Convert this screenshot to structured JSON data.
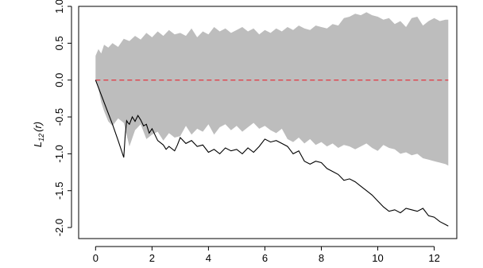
{
  "chart_data": {
    "type": "area",
    "title": "",
    "xlabel": "",
    "ylabel": {
      "base": "L",
      "subscript": "12",
      "arg": "(r)"
    },
    "xlim": [
      -0.6,
      12.8
    ],
    "ylim": [
      -2.15,
      1.0
    ],
    "x_ticks": [
      0,
      2,
      4,
      6,
      8,
      10,
      12
    ],
    "x_tick_labels": [
      "0",
      "2",
      "4",
      "6",
      "8",
      "10",
      "12"
    ],
    "y_ticks": [
      1.0,
      0.5,
      0.0,
      -0.5,
      -1.0,
      -1.5,
      -2.0
    ],
    "y_tick_labels": [
      "1.0",
      "0.5",
      "0.0",
      "-0.5",
      "-1.0",
      "-1.5",
      "-2.0"
    ],
    "grid": false,
    "series": [
      {
        "role": "envelope",
        "x": [
          0,
          0.1,
          0.2,
          0.3,
          0.45,
          0.6,
          0.8,
          1.0,
          1.2,
          1.4,
          1.6,
          1.8,
          2.0,
          2.2,
          2.4,
          2.6,
          2.8,
          3.0,
          3.2,
          3.4,
          3.6,
          3.8,
          4.0,
          4.2,
          4.4,
          4.6,
          4.8,
          5.0,
          5.2,
          5.4,
          5.6,
          5.8,
          6.0,
          6.2,
          6.4,
          6.6,
          6.8,
          7.0,
          7.2,
          7.4,
          7.6,
          7.8,
          8.0,
          8.2,
          8.4,
          8.6,
          8.8,
          9.0,
          9.2,
          9.4,
          9.6,
          9.8,
          10.0,
          10.2,
          10.4,
          10.6,
          10.8,
          11.0,
          11.2,
          11.4,
          11.6,
          11.8,
          12.0,
          12.2,
          12.4,
          12.5
        ],
        "upper": [
          0.33,
          0.42,
          0.36,
          0.48,
          0.44,
          0.5,
          0.45,
          0.56,
          0.53,
          0.6,
          0.55,
          0.64,
          0.58,
          0.66,
          0.6,
          0.68,
          0.62,
          0.64,
          0.6,
          0.7,
          0.58,
          0.66,
          0.62,
          0.72,
          0.66,
          0.7,
          0.64,
          0.68,
          0.72,
          0.66,
          0.7,
          0.62,
          0.68,
          0.64,
          0.7,
          0.66,
          0.72,
          0.68,
          0.74,
          0.7,
          0.68,
          0.74,
          0.72,
          0.7,
          0.76,
          0.74,
          0.84,
          0.86,
          0.9,
          0.88,
          0.92,
          0.88,
          0.86,
          0.82,
          0.84,
          0.76,
          0.8,
          0.72,
          0.84,
          0.86,
          0.74,
          0.8,
          0.84,
          0.8,
          0.82,
          0.82
        ],
        "lower": [
          0.0,
          -0.12,
          -0.3,
          -0.42,
          -0.56,
          -0.62,
          -0.52,
          -0.58,
          -0.9,
          -0.68,
          -0.6,
          -0.8,
          -0.74,
          -0.7,
          -0.82,
          -0.72,
          -0.78,
          -0.76,
          -0.62,
          -0.74,
          -0.66,
          -0.7,
          -0.6,
          -0.74,
          -0.64,
          -0.6,
          -0.68,
          -0.62,
          -0.7,
          -0.64,
          -0.58,
          -0.66,
          -0.62,
          -0.68,
          -0.72,
          -0.66,
          -0.8,
          -0.84,
          -0.78,
          -0.86,
          -0.8,
          -0.88,
          -0.84,
          -0.9,
          -0.86,
          -0.92,
          -0.88,
          -0.9,
          -0.94,
          -0.9,
          -0.86,
          -0.92,
          -0.96,
          -0.88,
          -0.92,
          -0.94,
          -1.0,
          -0.98,
          -1.02,
          -1.0,
          -1.06,
          -1.08,
          -1.1,
          -1.12,
          -1.14,
          -1.16
        ]
      },
      {
        "role": "reference",
        "x": [
          0,
          12.5
        ],
        "y": [
          0,
          0
        ],
        "color": "#e0414a",
        "dash": true
      },
      {
        "role": "observed",
        "x": [
          0,
          0.2,
          0.4,
          0.6,
          0.8,
          1.0,
          1.05,
          1.1,
          1.15,
          1.2,
          1.3,
          1.4,
          1.5,
          1.6,
          1.7,
          1.8,
          1.9,
          2.0,
          2.2,
          2.4,
          2.5,
          2.6,
          2.8,
          2.9,
          3.0,
          3.2,
          3.4,
          3.6,
          3.8,
          4.0,
          4.2,
          4.4,
          4.6,
          4.8,
          5.0,
          5.2,
          5.4,
          5.6,
          5.8,
          6.0,
          6.2,
          6.4,
          6.6,
          6.8,
          7.0,
          7.2,
          7.4,
          7.6,
          7.8,
          8.0,
          8.2,
          8.4,
          8.6,
          8.8,
          9.0,
          9.2,
          9.4,
          9.6,
          9.8,
          10.0,
          10.2,
          10.4,
          10.6,
          10.8,
          11.0,
          11.2,
          11.4,
          11.6,
          11.8,
          12.0,
          12.2,
          12.4,
          12.5
        ],
        "y": [
          0,
          -0.2,
          -0.4,
          -0.6,
          -0.82,
          -1.05,
          -0.75,
          -0.55,
          -0.58,
          -0.6,
          -0.5,
          -0.56,
          -0.48,
          -0.54,
          -0.62,
          -0.6,
          -0.72,
          -0.66,
          -0.82,
          -0.88,
          -0.94,
          -0.9,
          -0.96,
          -0.88,
          -0.78,
          -0.86,
          -0.82,
          -0.9,
          -0.88,
          -0.98,
          -0.94,
          -1.0,
          -0.92,
          -0.96,
          -0.94,
          -1.0,
          -0.92,
          -0.98,
          -0.9,
          -0.8,
          -0.84,
          -0.82,
          -0.86,
          -0.9,
          -1.0,
          -0.96,
          -1.1,
          -1.14,
          -1.1,
          -1.12,
          -1.2,
          -1.24,
          -1.28,
          -1.36,
          -1.34,
          -1.38,
          -1.44,
          -1.5,
          -1.56,
          -1.64,
          -1.72,
          -1.78,
          -1.76,
          -1.8,
          -1.74,
          -1.76,
          -1.78,
          -1.74,
          -1.84,
          -1.86,
          -1.92,
          -1.96,
          -1.98
        ],
        "color": "#000000"
      }
    ]
  }
}
